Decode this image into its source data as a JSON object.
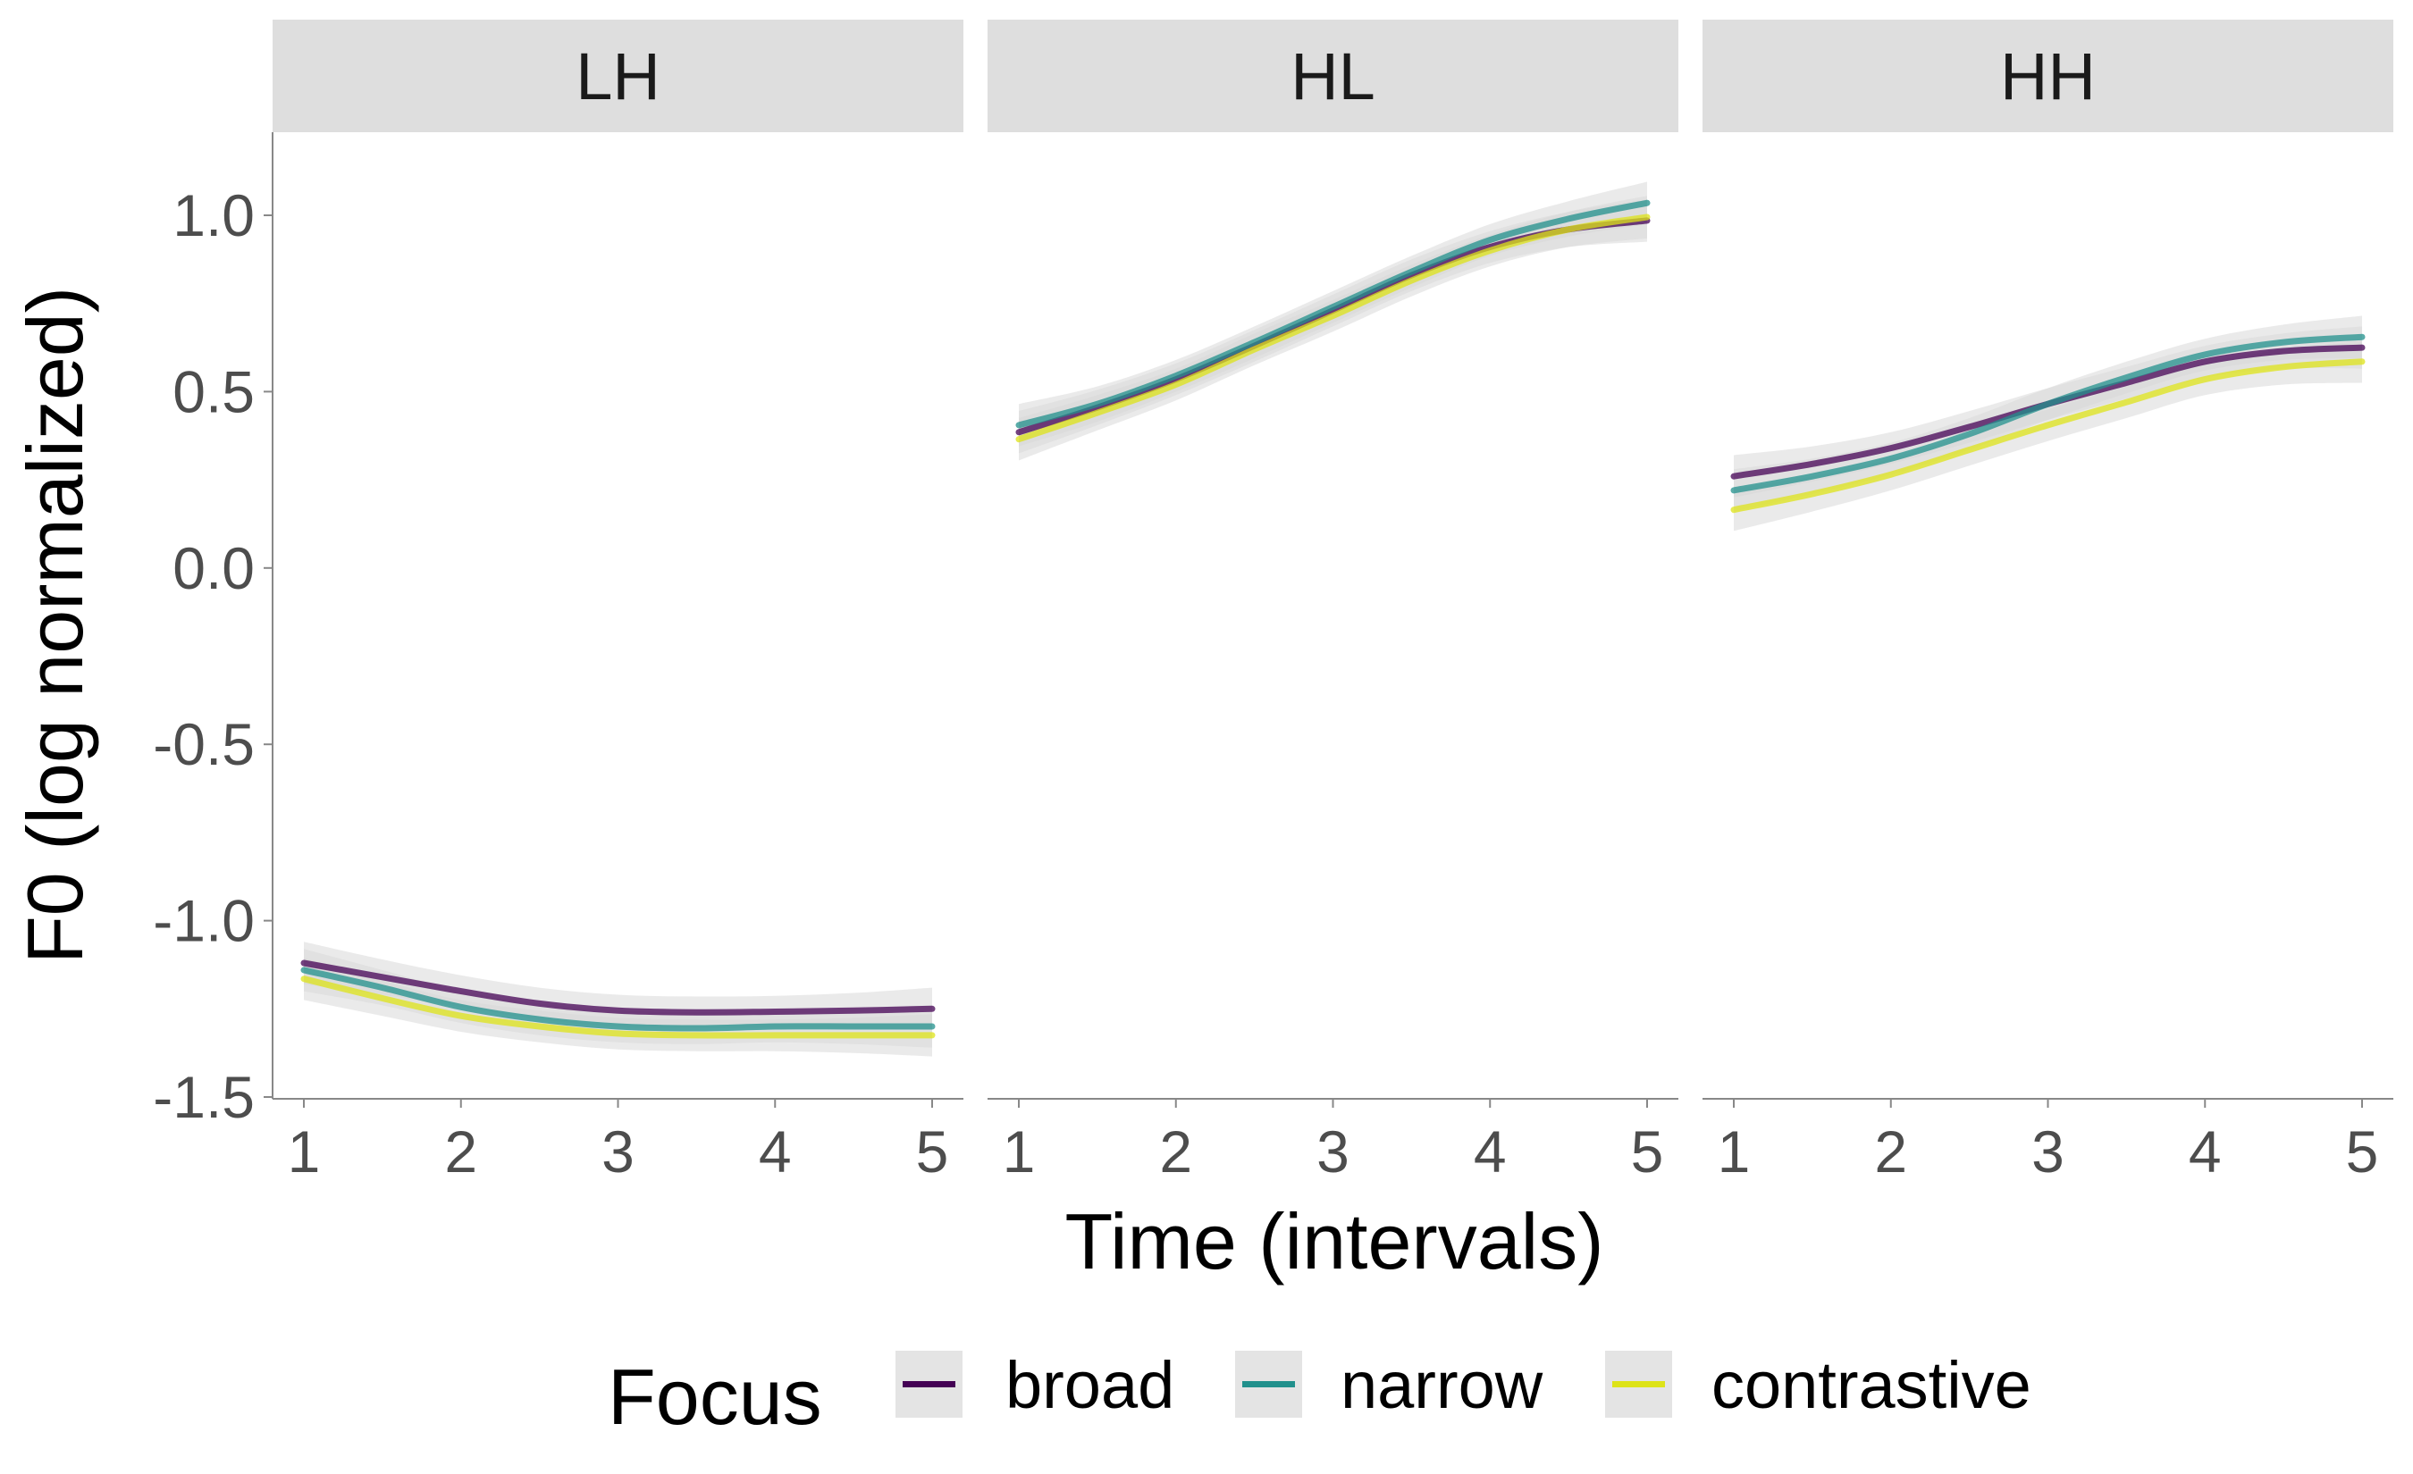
{
  "chart_data": {
    "type": "line",
    "facets": [
      "LH",
      "HL",
      "HH"
    ],
    "xlabel": "Time (intervals)",
    "ylabel": "F0 (log normalized)",
    "x_ticks": [
      "1",
      "2",
      "3",
      "4",
      "5"
    ],
    "y_ticks": [
      "1.0",
      "0.5",
      "0.0",
      "-0.5",
      "-1.0",
      "-1.5"
    ],
    "xlim": [
      1,
      5
    ],
    "ylim": [
      -1.5,
      1.2
    ],
    "grid": false,
    "legend": {
      "title": "Focus",
      "position": "bottom",
      "entries": [
        "broad",
        "narrow",
        "contrastive"
      ]
    },
    "colors": {
      "broad": "#440154",
      "narrow": "#21908C",
      "contrastive": "#DDE318",
      "ribbon": "#d9d9d9",
      "strip": "#dedede"
    },
    "x": [
      1,
      1.5,
      2,
      2.5,
      3,
      3.5,
      4,
      4.5,
      5
    ],
    "panels": [
      {
        "facet": "LH",
        "series": [
          {
            "name": "broad",
            "values": [
              -1.12,
              -1.16,
              -1.2,
              -1.235,
              -1.255,
              -1.26,
              -1.258,
              -1.255,
              -1.25
            ]
          },
          {
            "name": "narrow",
            "values": [
              -1.14,
              -1.19,
              -1.245,
              -1.28,
              -1.3,
              -1.305,
              -1.3,
              -1.3,
              -1.3
            ]
          },
          {
            "name": "contrastive",
            "values": [
              -1.165,
              -1.22,
              -1.27,
              -1.3,
              -1.32,
              -1.325,
              -1.325,
              -1.325,
              -1.325
            ]
          }
        ]
      },
      {
        "facet": "HL",
        "series": [
          {
            "name": "broad",
            "values": [
              0.385,
              0.455,
              0.535,
              0.63,
              0.73,
              0.83,
              0.91,
              0.96,
              0.985
            ]
          },
          {
            "name": "narrow",
            "values": [
              0.405,
              0.465,
              0.545,
              0.64,
              0.74,
              0.84,
              0.93,
              0.99,
              1.035
            ]
          },
          {
            "name": "contrastive",
            "values": [
              0.365,
              0.44,
              0.52,
              0.62,
              0.715,
              0.815,
              0.9,
              0.96,
              0.995
            ]
          }
        ]
      },
      {
        "facet": "HH",
        "series": [
          {
            "name": "broad",
            "values": [
              0.26,
              0.295,
              0.34,
              0.4,
              0.465,
              0.525,
              0.585,
              0.615,
              0.625
            ]
          },
          {
            "name": "narrow",
            "values": [
              0.22,
              0.26,
              0.31,
              0.38,
              0.465,
              0.54,
              0.605,
              0.64,
              0.655
            ]
          },
          {
            "name": "contrastive",
            "values": [
              0.165,
              0.21,
              0.265,
              0.335,
              0.405,
              0.47,
              0.535,
              0.57,
              0.585
            ]
          }
        ]
      }
    ]
  }
}
